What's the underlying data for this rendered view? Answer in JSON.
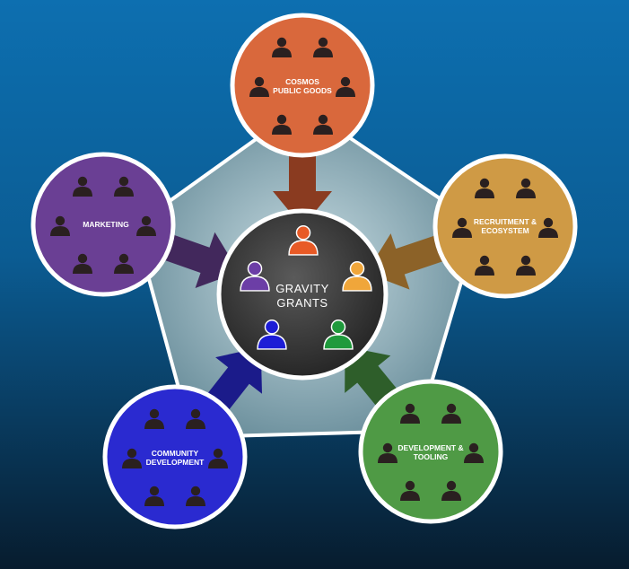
{
  "center": {
    "line1": "GRAVITY",
    "line2": "GRANTS",
    "member_colors": [
      "#e85a26",
      "#f0a63a",
      "#1f9a3c",
      "#1d1dd6",
      "#6c3ea6"
    ]
  },
  "nodes": [
    {
      "id": "cosmos",
      "line1": "COSMOS",
      "line2": "PUBLIC GOODS",
      "color": "#d9683c",
      "arrow_color": "#8a3b20"
    },
    {
      "id": "recruitment",
      "line1": "RECRUITMENT &",
      "line2": "ECOSYSTEM",
      "color": "#cf9a45",
      "arrow_color": "#8c6228"
    },
    {
      "id": "development",
      "line1": "DEVELOPMENT &",
      "line2": "TOOLING",
      "color": "#4f9a45",
      "arrow_color": "#2e5e2a"
    },
    {
      "id": "community",
      "line1": "COMMUNITY",
      "line2": "DEVELOPMENT",
      "color": "#2a2ad0",
      "arrow_color": "#1b1b8a"
    },
    {
      "id": "marketing",
      "line1": "MARKETING",
      "line2": "",
      "color": "#6a3f94",
      "arrow_color": "#42285c"
    }
  ],
  "colors": {
    "background_top": "#0d6fb0",
    "background_bottom": "#071c2e",
    "pentagon_fill": "#7fa7b3",
    "center_fill": "#3a3a3a",
    "person_icon": "#2a2020"
  }
}
